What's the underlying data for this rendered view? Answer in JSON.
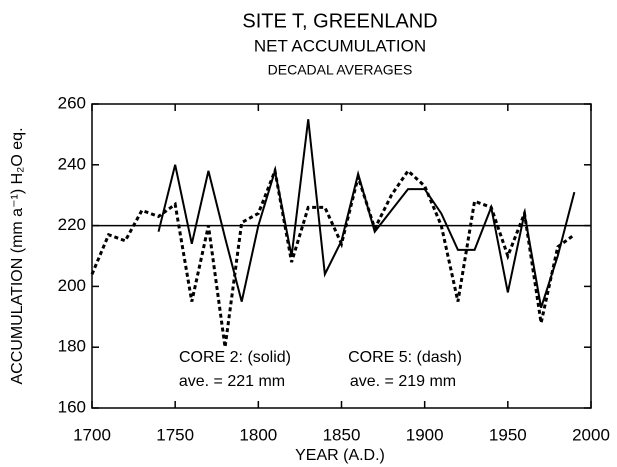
{
  "chart_data": {
    "type": "line",
    "title": "SITE T, GREENLAND",
    "subtitle": "NET ACCUMULATION",
    "subtitle2": "DECADAL AVERAGES",
    "xlabel": "YEAR (A.D.)",
    "ylabel": "ACCUMULATION (mm a⁻¹) H₂O eq.",
    "annotations": [
      "CORE 2: (solid)",
      "ave. = 221 mm",
      "CORE 5: (dash)",
      "ave. = 219 mm"
    ],
    "reference_line": 220,
    "x": [
      1700,
      1710,
      1720,
      1730,
      1740,
      1750,
      1760,
      1770,
      1780,
      1790,
      1800,
      1810,
      1820,
      1830,
      1840,
      1850,
      1860,
      1870,
      1880,
      1890,
      1900,
      1910,
      1920,
      1930,
      1940,
      1950,
      1960,
      1970,
      1980,
      1990
    ],
    "series": [
      {
        "name": "CORE 2",
        "color": "#000000",
        "dash": false,
        "values": [
          null,
          null,
          null,
          null,
          218,
          240,
          214,
          238,
          216,
          195,
          220,
          238,
          210,
          255,
          204,
          215,
          237,
          218,
          225,
          232,
          232,
          224,
          212,
          212,
          226,
          198,
          224,
          193,
          210,
          231
        ]
      },
      {
        "name": "CORE 5",
        "color": "#000000",
        "dash": true,
        "values": [
          204,
          217,
          215,
          225,
          223,
          227,
          195,
          220,
          180,
          221,
          224,
          238,
          208,
          226,
          226,
          214,
          236,
          219,
          230,
          238,
          233,
          220,
          195,
          228,
          226,
          210,
          224,
          188,
          213,
          217
        ]
      }
    ],
    "xlim": [
      1700,
      2000
    ],
    "xticks": [
      1700,
      1750,
      1800,
      1850,
      1900,
      1950,
      2000
    ],
    "ylim": [
      160,
      260
    ],
    "yticks": [
      160,
      180,
      200,
      220,
      240,
      260
    ],
    "grid": false
  }
}
